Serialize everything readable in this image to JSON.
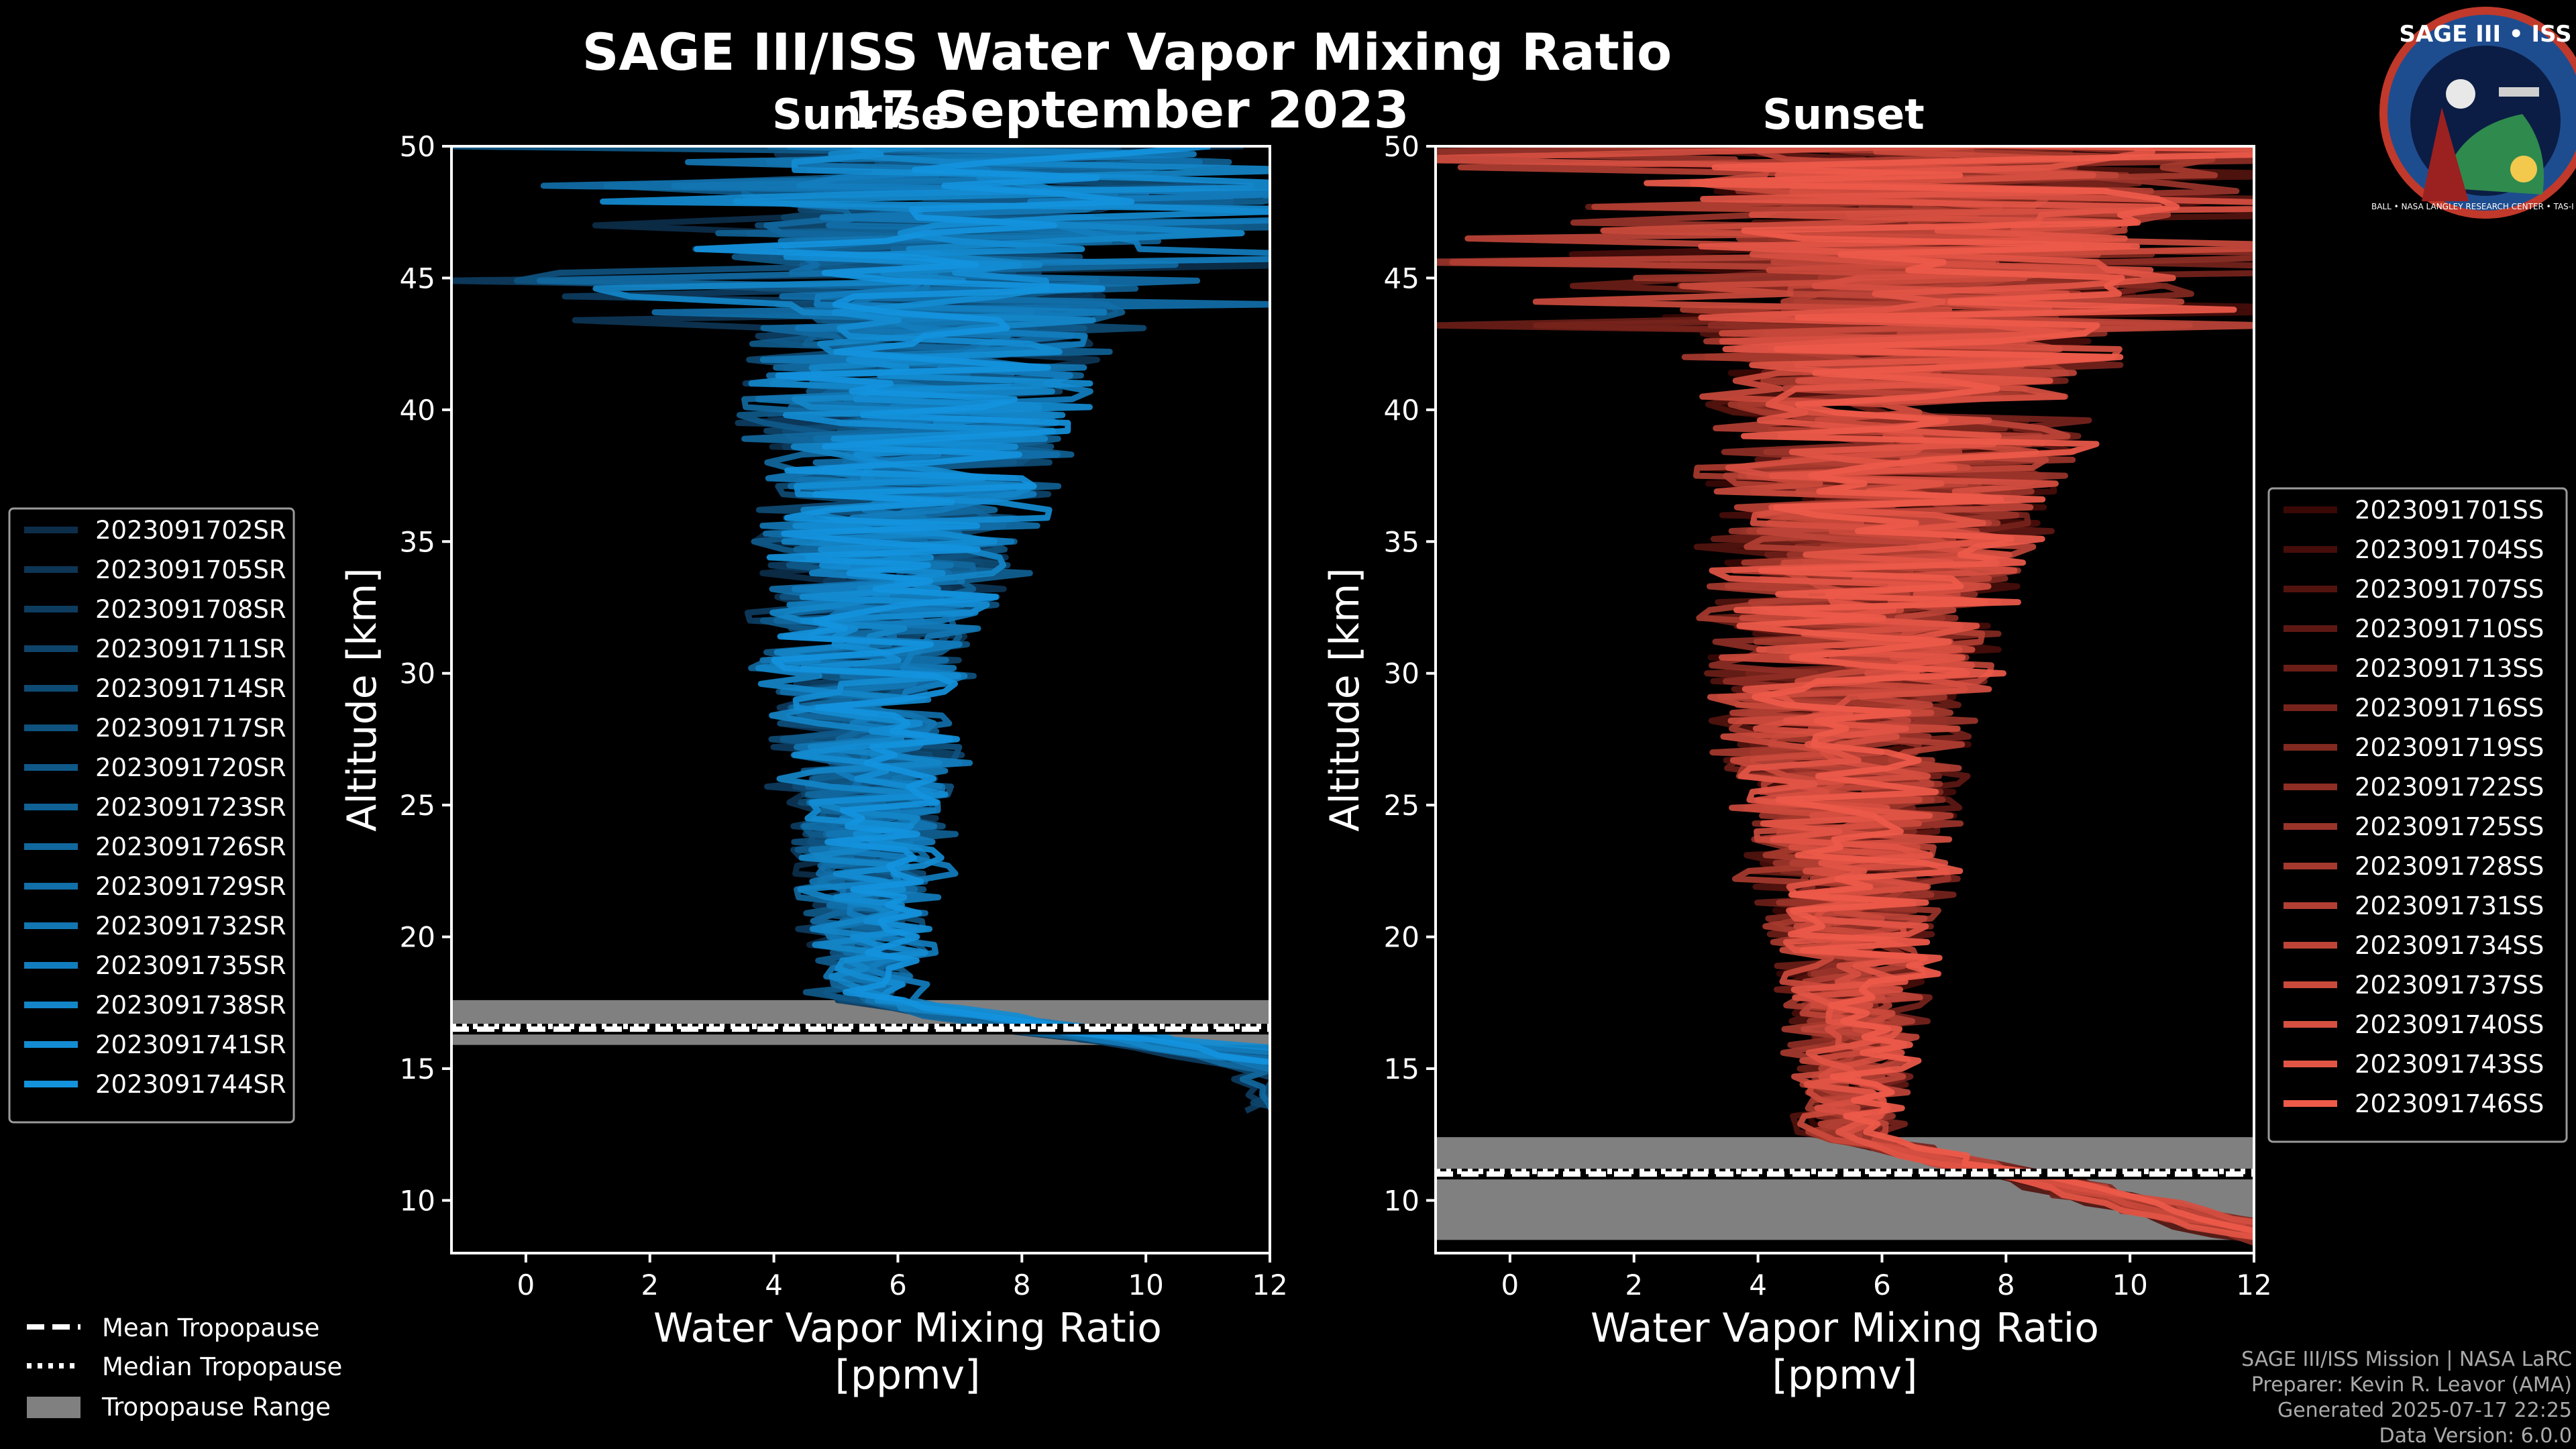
{
  "chart_data": {
    "title": "SAGE III/ISS Water Vapor Mixing Ratio",
    "date": "17 September 2023",
    "panels": [
      {
        "type": "line",
        "subtitle": "Sunrise",
        "xlabel": "Water Vapor Mixing Ratio",
        "xunit": "[ppmv]",
        "ylabel": "Altitude [km]",
        "xlim": [
          -1.2,
          12
        ],
        "ylim": [
          8,
          50
        ],
        "xticks": [
          0,
          2,
          4,
          6,
          8,
          10,
          12
        ],
        "yticks": [
          10,
          15,
          20,
          25,
          30,
          35,
          40,
          45,
          50
        ],
        "legend_position": "left",
        "color_dark": "#0c2e4a",
        "color_light": "#1493dd",
        "series": [
          {
            "name": "2023091702SR",
            "seed": 11,
            "base": 5.3,
            "low_end": 12.5
          },
          {
            "name": "2023091705SR",
            "seed": 23,
            "base": 5.5,
            "low_end": 13.0
          },
          {
            "name": "2023091708SR",
            "seed": 37,
            "base": 5.2,
            "low_end": 11.5
          },
          {
            "name": "2023091711SR",
            "seed": 41,
            "base": 5.6,
            "low_end": 12.0
          },
          {
            "name": "2023091714SR",
            "seed": 53,
            "base": 5.4,
            "low_end": 13.5
          },
          {
            "name": "2023091717SR",
            "seed": 67,
            "base": 5.7,
            "low_end": 12.2
          },
          {
            "name": "2023091720SR",
            "seed": 71,
            "base": 5.1,
            "low_end": 14.0
          },
          {
            "name": "2023091723SR",
            "seed": 83,
            "base": 5.8,
            "low_end": 12.8
          },
          {
            "name": "2023091726SR",
            "seed": 97,
            "base": 5.3,
            "low_end": 11.8
          },
          {
            "name": "2023091729SR",
            "seed": 101,
            "base": 5.6,
            "low_end": 13.2
          },
          {
            "name": "2023091732SR",
            "seed": 113,
            "base": 5.5,
            "low_end": 12.4
          },
          {
            "name": "2023091735SR",
            "seed": 127,
            "base": 5.9,
            "low_end": 13.8
          },
          {
            "name": "2023091738SR",
            "seed": 131,
            "base": 5.4,
            "low_end": 12.6
          },
          {
            "name": "2023091741SR",
            "seed": 149,
            "base": 5.7,
            "low_end": 14.5
          },
          {
            "name": "2023091744SR",
            "seed": 157,
            "base": 5.6,
            "low_end": 13.0
          }
        ],
        "tropopause": {
          "mean": 16.5,
          "median": 16.6,
          "min": 15.9,
          "max": 17.6
        }
      },
      {
        "type": "line",
        "subtitle": "Sunset",
        "xlabel": "Water Vapor Mixing Ratio",
        "xunit": "[ppmv]",
        "ylabel": "Altitude [km]",
        "xlim": [
          -1.2,
          12
        ],
        "ylim": [
          8,
          50
        ],
        "xticks": [
          0,
          2,
          4,
          6,
          8,
          10,
          12
        ],
        "yticks": [
          10,
          15,
          20,
          25,
          30,
          35,
          40,
          45,
          50
        ],
        "legend_position": "right",
        "color_dark": "#3a0805",
        "color_light": "#ee5a4a",
        "series": [
          {
            "name": "2023091701SS",
            "seed": 13,
            "base": 5.4,
            "low_end": 12.6
          },
          {
            "name": "2023091704SS",
            "seed": 29,
            "base": 5.6,
            "low_end": 13.0
          },
          {
            "name": "2023091707SS",
            "seed": 31,
            "base": 5.2,
            "low_end": 12.0
          },
          {
            "name": "2023091710SS",
            "seed": 43,
            "base": 5.7,
            "low_end": 13.4
          },
          {
            "name": "2023091713SS",
            "seed": 59,
            "base": 5.3,
            "low_end": 12.2
          },
          {
            "name": "2023091716SS",
            "seed": 61,
            "base": 5.8,
            "low_end": 12.8
          },
          {
            "name": "2023091719SS",
            "seed": 73,
            "base": 5.5,
            "low_end": 13.6
          },
          {
            "name": "2023091722SS",
            "seed": 79,
            "base": 5.4,
            "low_end": 12.3
          },
          {
            "name": "2023091725SS",
            "seed": 89,
            "base": 5.6,
            "low_end": 12.9
          },
          {
            "name": "2023091728SS",
            "seed": 103,
            "base": 5.1,
            "low_end": 13.1
          },
          {
            "name": "2023091731SS",
            "seed": 107,
            "base": 5.5,
            "low_end": 12.5
          },
          {
            "name": "2023091734SS",
            "seed": 109,
            "base": 5.7,
            "low_end": 13.3
          },
          {
            "name": "2023091737SS",
            "seed": 137,
            "base": 5.3,
            "low_end": 12.7
          },
          {
            "name": "2023091740SS",
            "seed": 139,
            "base": 5.6,
            "low_end": 13.5
          },
          {
            "name": "2023091743SS",
            "seed": 151,
            "base": 5.4,
            "low_end": 12.4
          },
          {
            "name": "2023091746SS",
            "seed": 163,
            "base": 5.8,
            "low_end": 13.0
          }
        ],
        "tropopause": {
          "mean": 11.0,
          "median": 11.1,
          "min": 8.5,
          "max": 12.4
        }
      }
    ],
    "legend_bottom": {
      "mean": "Mean Tropopause",
      "median": "Median Tropopause",
      "range": "Tropopause Range"
    }
  },
  "logo": {
    "title": "SAGE III • ISS",
    "ring_text": "BALL • NASA LANGLEY RESEARCH CENTER • TAS-I • ESA"
  },
  "credits": {
    "line1": "SAGE III/ISS Mission | NASA LaRC",
    "line2": "Preparer: Kevin R. Leavor (AMA)",
    "line3": "Generated 2025-07-17 22:25",
    "line4": "Data Version: 6.0.0"
  }
}
